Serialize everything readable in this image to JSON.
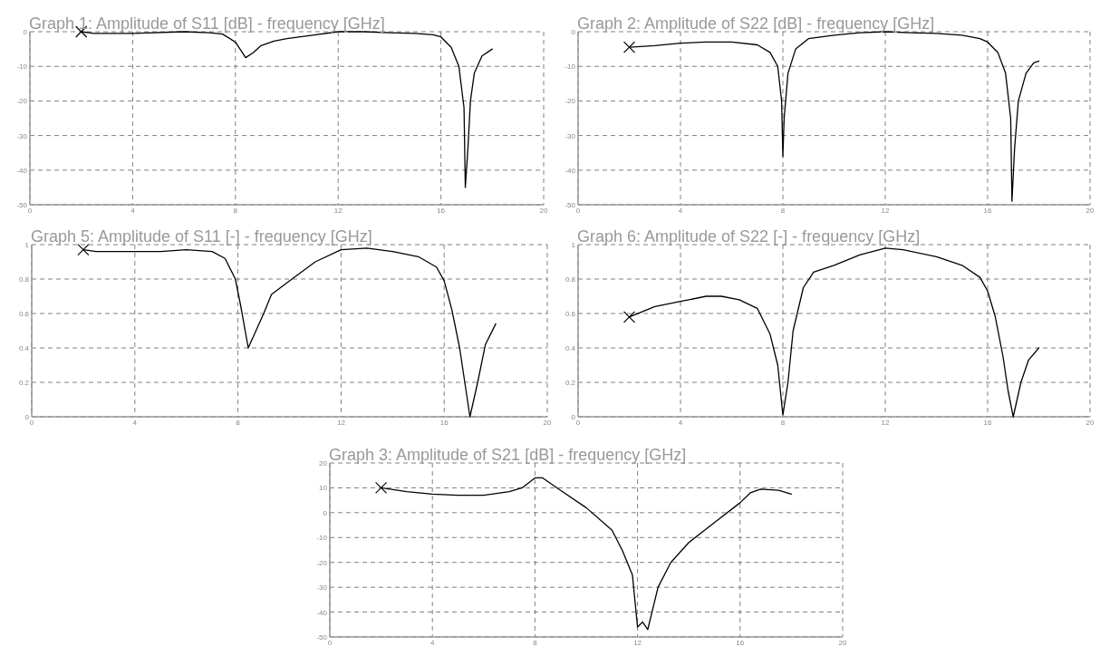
{
  "chart_data": [
    {
      "type": "line",
      "title": "Graph 1: Amplitude of S11 [dB] - frequency [GHz]",
      "xlim": [
        0,
        20
      ],
      "xticks": [
        0,
        4,
        8,
        12,
        16,
        20
      ],
      "ylim": [
        -50,
        0
      ],
      "yticks": [
        -50,
        -40,
        -30,
        -20,
        -10,
        0
      ],
      "grid": true,
      "line_style": "solid",
      "marker": "none",
      "series": [
        {
          "color": "#000000",
          "x": [
            2,
            2.5,
            4,
            6,
            7,
            7.5,
            8,
            8.4,
            8.7,
            9,
            9.5,
            10,
            11,
            12,
            13,
            14,
            15,
            15.7,
            16,
            16.4,
            16.7,
            16.9,
            16.95,
            17.05,
            17.15,
            17.3,
            17.6,
            18
          ],
          "values": [
            0,
            -0.5,
            -0.5,
            0,
            -0.3,
            -0.7,
            -3,
            -7.5,
            -6,
            -4,
            -2.7,
            -2,
            -1,
            0,
            0,
            -0.3,
            -0.5,
            -0.9,
            -1.5,
            -4.5,
            -10,
            -22,
            -45,
            -34,
            -20,
            -12,
            -7,
            -5
          ]
        }
      ]
    },
    {
      "type": "line",
      "title": "Graph 2: Amplitude of S22 [dB] - frequency [GHz]",
      "xlim": [
        0,
        20
      ],
      "xticks": [
        0,
        4,
        8,
        12,
        16,
        20
      ],
      "ylim": [
        -50,
        0
      ],
      "yticks": [
        -50,
        -40,
        -30,
        -20,
        -10,
        0
      ],
      "grid": true,
      "line_style": "solid",
      "marker": "none",
      "series": [
        {
          "color": "#000000",
          "x": [
            2,
            3,
            4,
            5,
            6,
            7,
            7.5,
            7.8,
            7.95,
            8,
            8.05,
            8.2,
            8.5,
            9,
            10,
            11,
            12,
            13,
            14,
            15,
            15.7,
            16,
            16.4,
            16.7,
            16.9,
            16.95,
            17.05,
            17.2,
            17.5,
            17.8,
            18
          ],
          "values": [
            -4.5,
            -4,
            -3.3,
            -3,
            -3,
            -3.8,
            -6,
            -10,
            -20,
            -36,
            -25,
            -12,
            -5,
            -2,
            -1,
            -0.3,
            0,
            -0.3,
            -0.5,
            -1,
            -2,
            -3,
            -6,
            -12,
            -25,
            -49,
            -34,
            -20,
            -12,
            -9,
            -8.5
          ]
        }
      ]
    },
    {
      "type": "line",
      "title": "Graph 5: Amplitude of S11 [-] - frequency [GHz]",
      "xlim": [
        0,
        20
      ],
      "xticks": [
        0,
        4,
        8,
        12,
        16,
        20
      ],
      "ylim": [
        0,
        1
      ],
      "yticks": [
        0,
        0.2,
        0.4,
        0.6,
        0.8,
        1
      ],
      "grid": true,
      "line_style": "solid",
      "marker": "none",
      "series": [
        {
          "color": "#000000",
          "x": [
            2,
            2.5,
            4,
            5,
            6,
            7,
            7.5,
            7.9,
            8.1,
            8.4,
            8.7,
            9,
            9.3,
            10,
            11,
            12,
            13,
            14,
            15,
            15.7,
            16,
            16.3,
            16.6,
            16.8,
            17,
            17.3,
            17.6,
            18
          ],
          "values": [
            0.97,
            0.96,
            0.96,
            0.96,
            0.97,
            0.96,
            0.92,
            0.8,
            0.65,
            0.4,
            0.5,
            0.6,
            0.71,
            0.79,
            0.9,
            0.97,
            0.98,
            0.96,
            0.93,
            0.87,
            0.79,
            0.62,
            0.4,
            0.2,
            0,
            0.2,
            0.42,
            0.54
          ]
        }
      ]
    },
    {
      "type": "line",
      "title": "Graph 6: Amplitude of S22 [-] - frequency [GHz]",
      "xlim": [
        0,
        20
      ],
      "xticks": [
        0,
        4,
        8,
        12,
        16,
        20
      ],
      "ylim": [
        0,
        1
      ],
      "yticks": [
        0,
        0.2,
        0.4,
        0.6,
        0.8,
        1
      ],
      "grid": true,
      "line_style": "solid",
      "marker": "none",
      "series": [
        {
          "color": "#000000",
          "x": [
            2,
            3,
            4,
            5,
            5.6,
            6.3,
            7,
            7.5,
            7.8,
            8,
            8.2,
            8.4,
            8.8,
            9.2,
            10,
            11,
            12,
            12.7,
            14,
            15,
            15.7,
            16,
            16.3,
            16.6,
            16.8,
            17,
            17.3,
            17.6,
            18
          ],
          "values": [
            0.58,
            0.64,
            0.67,
            0.7,
            0.7,
            0.68,
            0.63,
            0.48,
            0.3,
            0.01,
            0.2,
            0.5,
            0.75,
            0.84,
            0.88,
            0.94,
            0.98,
            0.97,
            0.93,
            0.88,
            0.81,
            0.73,
            0.58,
            0.35,
            0.15,
            0,
            0.2,
            0.33,
            0.4
          ]
        }
      ]
    },
    {
      "type": "line",
      "title": "Graph 3: Amplitude of S21 [dB] - frequency [GHz]",
      "xlim": [
        0,
        20
      ],
      "xticks": [
        0,
        4,
        8,
        12,
        16,
        20
      ],
      "ylim": [
        -50,
        20
      ],
      "yticks": [
        -50,
        -40,
        -30,
        -20,
        -10,
        0,
        10,
        20
      ],
      "grid": true,
      "line_style": "solid",
      "marker": "none",
      "series": [
        {
          "color": "#000000",
          "x": [
            2,
            3,
            4,
            5,
            6,
            7,
            7.5,
            8,
            8.3,
            9,
            10,
            11,
            11.4,
            11.8,
            12,
            12.2,
            12.4,
            12.8,
            13.3,
            14,
            15,
            16,
            16.4,
            16.8,
            17.5,
            18
          ],
          "values": [
            10,
            8.5,
            7.5,
            7,
            7,
            8.5,
            10,
            14,
            14,
            9,
            2,
            -7,
            -15,
            -25,
            -46,
            -44,
            -47,
            -30,
            -20,
            -12,
            -4,
            4,
            8,
            9.5,
            9,
            7.5
          ]
        }
      ]
    }
  ]
}
